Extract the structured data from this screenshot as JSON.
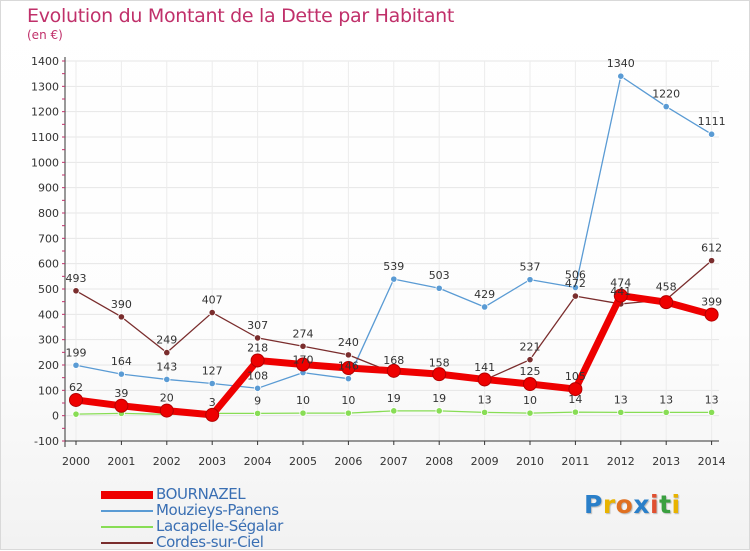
{
  "title": "Evolution du Montant de la Dette par Habitant",
  "subtitle": "(en €)",
  "logo": {
    "text": "Proxiti",
    "colors": [
      "#2a7fc9",
      "#e8b300",
      "#e07020",
      "#2a7fc9",
      "#e05030",
      "#3aa040",
      "#e8b300"
    ]
  },
  "colors": {
    "title": "#c0306a",
    "axis_labels": "#333333",
    "grid": "#e4e4e4",
    "legend_text": "#3a6fb3"
  },
  "chart_data": {
    "type": "line",
    "x": [
      "2000",
      "2001",
      "2002",
      "2003",
      "2004",
      "2005",
      "2006",
      "2007",
      "2008",
      "2009",
      "2010",
      "2011",
      "2012",
      "2013",
      "2014"
    ],
    "ylim": [
      -100,
      1400
    ],
    "yticks": [
      "-100",
      "0",
      "100",
      "200",
      "300",
      "400",
      "500",
      "600",
      "700",
      "800",
      "900",
      "1000",
      "1100",
      "1200",
      "1300",
      "1400"
    ],
    "grid": true,
    "legend_position": "bottom-left",
    "series": [
      {
        "name": "BOURNAZEL",
        "color": "#ee0000",
        "values": [
          62,
          39,
          20,
          3,
          218,
          202,
          188,
          177,
          164,
          143,
          125,
          105,
          474,
          448,
          399
        ],
        "labels": [
          "62",
          "39",
          "20",
          "3",
          "218",
          "",
          "",
          "",
          "",
          "",
          "125",
          "105",
          "474",
          "",
          "399"
        ]
      },
      {
        "name": "Mouzieys-Panens",
        "color": "#5a9bd4",
        "values": [
          199,
          164,
          143,
          127,
          108,
          170,
          146,
          539,
          503,
          429,
          537,
          506,
          1340,
          1220,
          1111
        ],
        "labels": [
          "199",
          "164",
          "143",
          "127",
          "108",
          "170",
          "146",
          "539",
          "503",
          "429",
          "537",
          "506",
          "1340",
          "1220",
          "1111"
        ]
      },
      {
        "name": "Lacapelle-Ségalar",
        "color": "#88dd55",
        "values": [
          6,
          9,
          5,
          9,
          9,
          10,
          10,
          19,
          19,
          13,
          10,
          14,
          13,
          13,
          13
        ],
        "labels": [
          "",
          "",
          "",
          "",
          "9",
          "10",
          "10",
          "19",
          "19",
          "13",
          "10",
          "14",
          "13",
          "13",
          "13"
        ]
      },
      {
        "name": "Cordes-sur-Ciel",
        "color": "#7a2d2d",
        "values": [
          493,
          390,
          249,
          407,
          307,
          274,
          240,
          168,
          158,
          141,
          221,
          472,
          441,
          458,
          612
        ],
        "labels": [
          "493",
          "390",
          "249",
          "407",
          "307",
          "274",
          "240",
          "168",
          "158",
          "141",
          "221",
          "472",
          "441",
          "458",
          "612"
        ]
      }
    ]
  }
}
